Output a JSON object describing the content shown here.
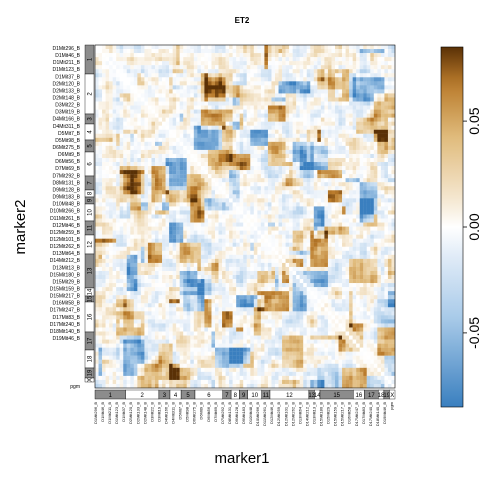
{
  "chart_data": {
    "type": "heatmap",
    "title": "ET2",
    "xlabel": "marker1",
    "ylabel": "marker2",
    "color_scale": {
      "ticks": [
        0.05,
        0.0,
        -0.05
      ],
      "tick_labels": [
        "0.05",
        "0.00",
        "-0.05"
      ],
      "range": [
        -0.085,
        0.085
      ],
      "low_color": "#3a7fbf",
      "mid_color": "#ffffff",
      "high_color": "#5a3106"
    },
    "y_marker_labels": [
      "D1Mit296_B",
      "D1Mit46_B",
      "D1Mit211_B",
      "D1Mit123_B",
      "D1Mit37_B",
      "D2Mit120_B",
      "D2Mit133_B",
      "D2Mit148_B",
      "D3Mit22_B",
      "D3Mit19_B",
      "D4Mit166_B",
      "D4Mit311_B",
      "D5Mit7_B",
      "D5Mit98_B",
      "D6Mit275_B",
      "D6Mit9_B",
      "D6Mit56_B",
      "D7Mit69_B",
      "D7Mit292_B",
      "D8Mit131_B",
      "D9Mit128_B",
      "D9Mit183_B",
      "D10Mit48_B",
      "D10Mit266_B",
      "D11Mit261_B",
      "D12Mit46_B",
      "D12Mit259_B",
      "D12Mit101_B",
      "D12Mit262_B",
      "D13Mit64_B",
      "D14Mit212_B",
      "D13Mit13_B",
      "D15Mit180_B",
      "D15Mit29_B",
      "D15Mit159_B",
      "D15Mit217_B",
      "D16Mit58_B",
      "D17Mit247_B",
      "D17Mit83_B",
      "D17Mit240_B",
      "D18Mit140_B",
      "D19Mit46_B",
      "pgm"
    ],
    "chromosomes": [
      "1",
      "2",
      "3",
      "4",
      "5",
      "6",
      "7",
      "8",
      "9",
      "10",
      "11",
      "12",
      "13",
      "14",
      "15",
      "16",
      "17",
      "18",
      "19",
      "X"
    ],
    "chromosome_y_labels": [
      "1",
      "2",
      "3",
      "4",
      "5",
      "6",
      "7",
      "8",
      "9",
      "10",
      "11",
      "12",
      "13",
      "14",
      "15",
      "16",
      "17",
      "18",
      "19",
      "X"
    ],
    "chromosome_x_labels": [
      "1",
      "2",
      "3",
      "4",
      "5",
      "6",
      "7",
      "8",
      "9",
      "10",
      "11",
      "12",
      "13",
      "14",
      "15",
      "16",
      "17",
      "18",
      "19",
      "X"
    ],
    "x_chromosome_segments": [
      {
        "label": "1",
        "markers": 11
      },
      {
        "label": "2",
        "markers": 12
      },
      {
        "label": "3",
        "markers": 4
      },
      {
        "label": "4",
        "markers": 4
      },
      {
        "label": "5",
        "markers": 5
      },
      {
        "label": "6",
        "markers": 10
      },
      {
        "label": "7",
        "markers": 3
      },
      {
        "label": "8",
        "markers": 3
      },
      {
        "label": "9",
        "markers": 3
      },
      {
        "label": "10",
        "markers": 5
      },
      {
        "label": "11",
        "markers": 3
      },
      {
        "label": "12",
        "markers": 14
      },
      {
        "label": "13",
        "markers": 2
      },
      {
        "label": "14",
        "markers": 2
      },
      {
        "label": "15",
        "markers": 12
      },
      {
        "label": "16",
        "markers": 4
      },
      {
        "label": "17",
        "markers": 5
      },
      {
        "label": "18",
        "markers": 2
      },
      {
        "label": "19",
        "markers": 2
      },
      {
        "label": "X",
        "markers": 2
      }
    ],
    "grid": false,
    "legend": "colorbar-right"
  }
}
